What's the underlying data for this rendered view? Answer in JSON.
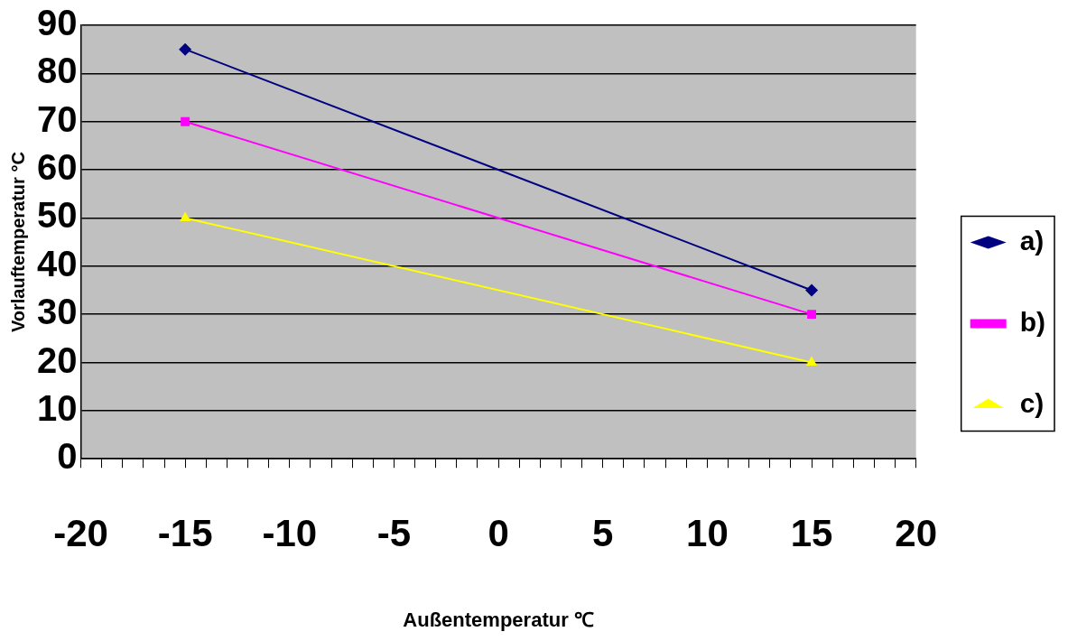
{
  "chart_data": {
    "type": "line",
    "xlabel": "Außentemperatur ℃",
    "ylabel": "Vorlauftemperatur °C",
    "x": [
      -15,
      15
    ],
    "series": [
      {
        "name": "a)",
        "color": "#000080",
        "marker": "diamond",
        "values": [
          85,
          35
        ]
      },
      {
        "name": "b)",
        "color": "#ff00ff",
        "marker": "square",
        "values": [
          70,
          30
        ]
      },
      {
        "name": "c)",
        "color": "#ffff00",
        "marker": "triangle",
        "values": [
          50,
          20
        ]
      }
    ],
    "xlim": [
      -20,
      20
    ],
    "xticks": [
      -20,
      {
        "value": -19,
        "label": null
      },
      {
        "value": -18,
        "label": null
      },
      {
        "value": -17,
        "label": null
      },
      {
        "value": -16,
        "label": null
      },
      -15,
      {
        "value": -14,
        "label": null
      },
      {
        "value": -13,
        "label": null
      },
      {
        "value": -12,
        "label": null
      },
      {
        "value": -11,
        "label": null
      },
      -10,
      {
        "value": -9,
        "label": null
      },
      {
        "value": -8,
        "label": null
      },
      {
        "value": -7,
        "label": null
      },
      {
        "value": -6,
        "label": null
      },
      -5,
      {
        "value": -4,
        "label": null
      },
      {
        "value": -3,
        "label": null
      },
      {
        "value": -2,
        "label": null
      },
      {
        "value": -1,
        "label": null
      },
      0,
      {
        "value": 1,
        "label": null
      },
      {
        "value": 2,
        "label": null
      },
      {
        "value": 3,
        "label": null
      },
      {
        "value": 4,
        "label": null
      },
      5,
      {
        "value": 6,
        "label": null
      },
      {
        "value": 7,
        "label": null
      },
      {
        "value": 8,
        "label": null
      },
      {
        "value": 9,
        "label": null
      },
      10,
      {
        "value": 11,
        "label": null
      },
      {
        "value": 12,
        "label": null
      },
      {
        "value": 13,
        "label": null
      },
      {
        "value": 14,
        "label": null
      },
      15,
      {
        "value": 16,
        "label": null
      },
      {
        "value": 17,
        "label": null
      },
      {
        "value": 18,
        "label": null
      },
      {
        "value": 19,
        "label": null
      },
      20
    ],
    "ylim": [
      0,
      90
    ],
    "yticks": [
      0,
      10,
      20,
      30,
      40,
      50,
      60,
      70,
      80,
      90
    ],
    "grid": "y",
    "legend": "right",
    "line_style": "solid"
  }
}
